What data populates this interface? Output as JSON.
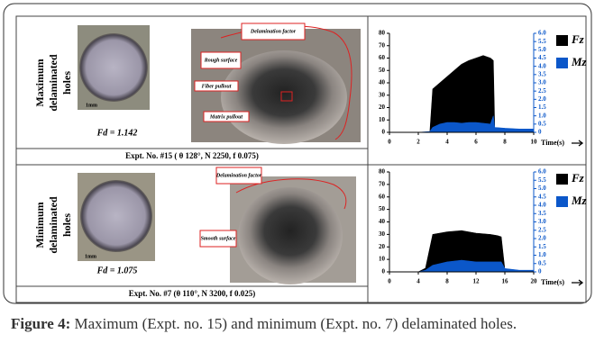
{
  "rows": [
    {
      "title": [
        "Maximum",
        "delaminated",
        "holes"
      ],
      "scale": "1mm",
      "fd": "Fd = 1.142",
      "annotations": [
        "Delamination factor",
        "Rough surface",
        "Fiber pullout",
        "Matrix pullout"
      ],
      "experiment": "Expt. No. #15 ( θ 128°, N 2250, f 0.075)",
      "chart": {
        "type": "line",
        "xlabel": "Time(s)",
        "x": [
          0,
          1,
          2,
          2.8,
          3,
          3.5,
          4,
          4.5,
          5,
          5.5,
          6,
          6.5,
          7,
          7.2,
          7.3,
          8,
          9,
          10
        ],
        "series": [
          {
            "name": "Fz",
            "color": "#000000",
            "values": [
              0,
              0,
              0,
              0,
              35,
              40,
              45,
              50,
              55,
              58,
              60,
              62,
              60,
              58,
              2,
              1,
              1,
              1
            ]
          },
          {
            "name": "Mz",
            "color": "#0b57c9",
            "axis": "y2",
            "values": [
              0,
              0,
              0,
              0.05,
              0.3,
              0.5,
              0.6,
              0.6,
              0.55,
              0.6,
              0.6,
              0.55,
              0.5,
              1.0,
              0.3,
              0.25,
              0.2,
              0.2
            ]
          }
        ],
        "xlim": [
          0,
          10
        ],
        "xticks": [
          0,
          2,
          4,
          6,
          8,
          10
        ],
        "ylim": [
          0,
          80
        ],
        "yticks": [
          0,
          10,
          20,
          30,
          40,
          50,
          60,
          70,
          80
        ],
        "y2lim": [
          0,
          6
        ],
        "y2ticks": [
          0,
          0.5,
          {
            "value": 1,
            "label": "1.0"
          },
          1.5,
          {
            "value": 2,
            "label": "2.0"
          },
          2.5,
          {
            "value": 3,
            "label": "3.0"
          },
          3.5,
          {
            "value": 4,
            "label": "4.0"
          },
          4.5,
          {
            "value": 5,
            "label": "5.0"
          },
          5.5,
          {
            "value": 6,
            "label": "6.0"
          }
        ]
      }
    },
    {
      "title": [
        "Minimum",
        "delaminated",
        "holes"
      ],
      "scale": "1mm",
      "fd": "Fd = 1.075",
      "annotations": [
        "Delamination factor",
        "Smooth surface"
      ],
      "experiment": "Expt. No. #7 (θ 110°, N 3200, f 0.025)",
      "chart": {
        "type": "line",
        "xlabel": "Time(s)",
        "x": [
          0,
          2,
          4,
          5,
          6,
          8,
          10,
          12,
          14,
          15,
          15.5,
          16,
          18,
          20
        ],
        "series": [
          {
            "name": "Fz",
            "color": "#000000",
            "values": [
              0,
              0,
              0,
              3,
              30,
              32,
              33,
              31,
              30,
              29,
              28,
              2,
              1,
              1
            ]
          },
          {
            "name": "Mz",
            "color": "#0b57c9",
            "axis": "y2",
            "values": [
              0,
              0,
              0,
              0.1,
              0.4,
              0.6,
              0.7,
              0.6,
              0.6,
              0.6,
              0.6,
              0.2,
              0.1,
              0.1
            ]
          }
        ],
        "xlim": [
          0,
          20
        ],
        "xticks": [
          0,
          4,
          8,
          12,
          16,
          20
        ],
        "ylim": [
          0,
          80
        ],
        "yticks": [
          0,
          10,
          20,
          30,
          40,
          50,
          60,
          70,
          80
        ],
        "y2lim": [
          0,
          6
        ],
        "y2ticks": [
          0,
          0.5,
          {
            "value": 1,
            "label": "1.0"
          },
          1.5,
          {
            "value": 2,
            "label": "2.0"
          },
          2.5,
          {
            "value": 3,
            "label": "3.0"
          },
          3.5,
          {
            "value": 4,
            "label": "4.0"
          },
          4.5,
          {
            "value": 5,
            "label": "5.0"
          },
          5.5,
          {
            "value": 6,
            "label": "6.0"
          }
        ]
      }
    }
  ],
  "caption": {
    "label": "Figure 4:",
    "text": "Maximum (Expt. no. 15) and minimum (Expt. no. 7) delaminated holes."
  }
}
